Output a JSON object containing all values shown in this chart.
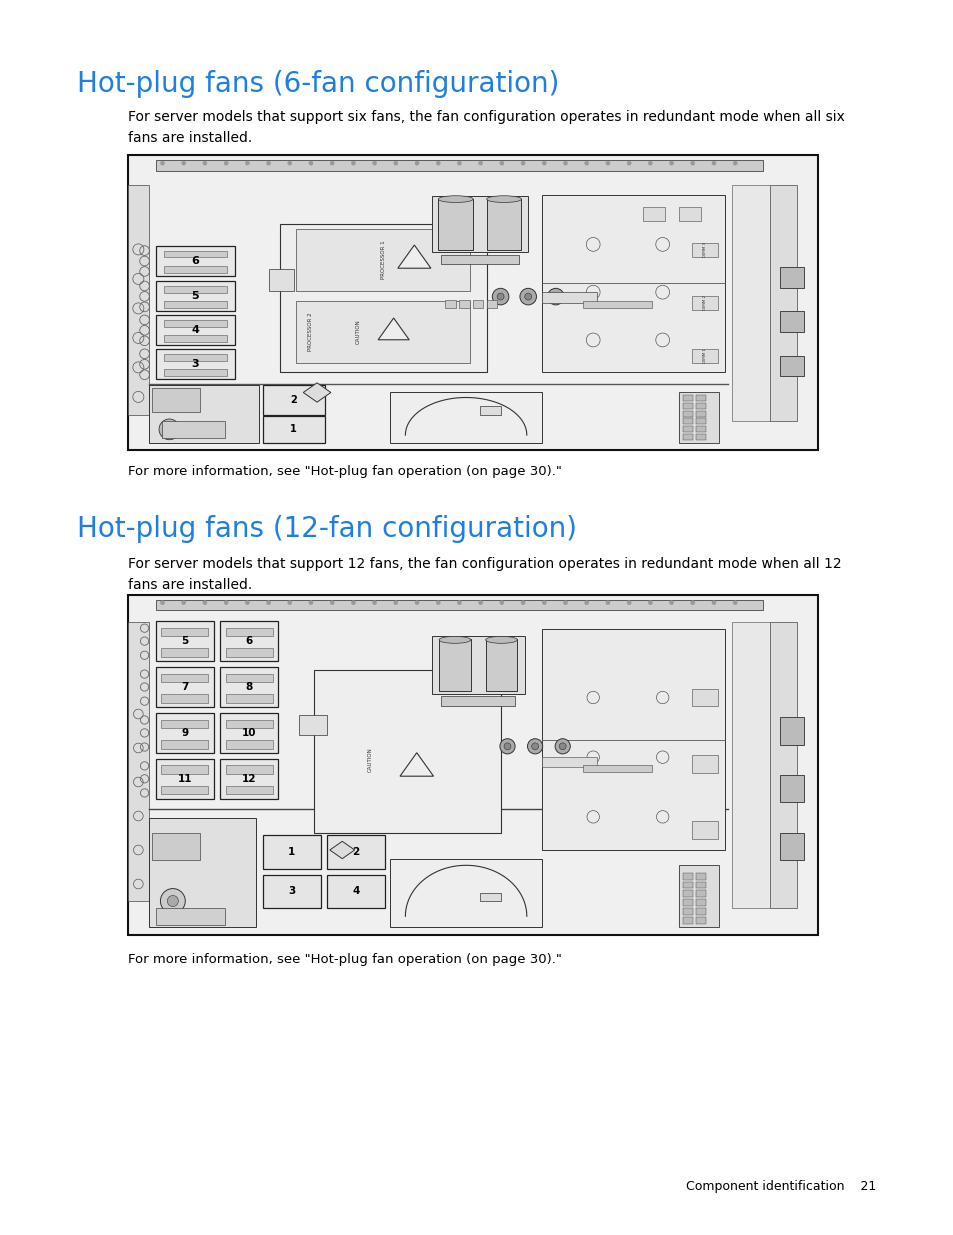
{
  "title1": "Hot-plug fans (6-fan configuration)",
  "title2": "Hot-plug fans (12-fan configuration)",
  "title_color": "#1F7FE0",
  "title_fontsize": 20,
  "body_fontsize": 10,
  "small_fontsize": 9.5,
  "footer_fontsize": 9,
  "bg_color": "#FFFFFF",
  "text_color": "#000000",
  "para1": "For server models that support six fans, the fan configuration operates in redundant mode when all six\nfans are installed.",
  "para2": "For server models that support 12 fans, the fan configuration operates in redundant mode when all 12\nfans are installed.",
  "caption1": "For more information, see \"Hot-plug fan operation (on page 30).\"",
  "caption2": "For more information, see \"Hot-plug fan operation (on page 30).\"",
  "footer_text": "Component identification    21"
}
